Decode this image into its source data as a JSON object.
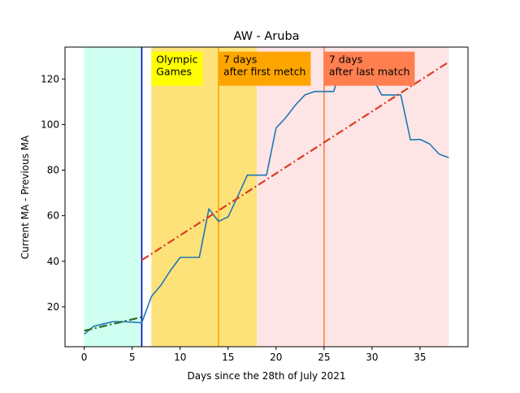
{
  "chart_data": {
    "type": "line",
    "title": "AW - Aruba",
    "xlabel": "Days since the 28th of July 2021",
    "ylabel": "Current MA - Previous MA",
    "xlim": [
      -2,
      40
    ],
    "ylim": [
      2.5,
      134
    ],
    "xticks": [
      0,
      5,
      10,
      15,
      20,
      25,
      30,
      35
    ],
    "yticks": [
      20,
      40,
      60,
      80,
      100,
      120
    ],
    "grid": false,
    "shaded_regions": [
      {
        "x0": 0,
        "x1": 6,
        "color": "#cffff0"
      },
      {
        "x0": 7,
        "x1": 18,
        "color": "#fde27a"
      },
      {
        "x0": 18,
        "x1": 38,
        "color": "#fde5e5"
      }
    ],
    "vertical_lines": [
      {
        "x": 6,
        "color": "#0000c0"
      },
      {
        "x": 14,
        "color": "#ffa500"
      },
      {
        "x": 25,
        "color": "#ff7f50"
      }
    ],
    "annotations": [
      {
        "text": [
          "Olympic",
          "Games"
        ],
        "x": 7,
        "y": 132,
        "bg": "#ffff00"
      },
      {
        "text": [
          "7 days",
          "after first metch"
        ],
        "x": 14,
        "y": 132,
        "bg": "#ffa500"
      },
      {
        "text": [
          "7 days",
          "after last match"
        ],
        "x": 25,
        "y": 132,
        "bg": "#ff7f50"
      }
    ],
    "series": [
      {
        "style": "solid",
        "color": "#1f77b4",
        "x": [
          0,
          1,
          2,
          3,
          4,
          5,
          6,
          7,
          8,
          9,
          10,
          11,
          12,
          13,
          14,
          15,
          16,
          17,
          18,
          19,
          20,
          21,
          22,
          23,
          24,
          25,
          26,
          27,
          28,
          29,
          30,
          31,
          32,
          33,
          34,
          35,
          36,
          37,
          38
        ],
        "y": [
          8,
          11.5,
          12.5,
          13.5,
          13.5,
          13.3,
          13,
          24.5,
          29.5,
          36,
          41.7,
          41.7,
          41.7,
          63,
          57.5,
          59.5,
          68.5,
          77.8,
          77.8,
          77.8,
          98.5,
          103,
          108.5,
          113,
          114.5,
          114.5,
          114.5,
          128,
          130,
          129,
          121,
          113,
          113,
          113,
          93.3,
          93.5,
          91.5,
          87,
          85.5
        ]
      },
      {
        "style": "dashdot",
        "color": "#2a6e2a",
        "x": [
          0,
          6
        ],
        "y": [
          9.5,
          15.5
        ]
      },
      {
        "style": "dashdot",
        "color": "#dd3c23",
        "x": [
          6,
          38
        ],
        "y": [
          40.5,
          127.5
        ]
      }
    ]
  }
}
